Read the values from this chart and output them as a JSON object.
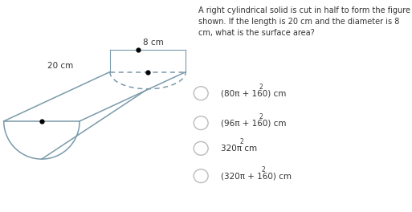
{
  "title_text": "A right cylindrical solid is cut in half to form the figure\nshown. If the length is 20 cm and the diameter is 8\ncm, what is the surface area?",
  "options_base": [
    "(80π + 160) cm",
    "(96π + 160) cm",
    "320π cm",
    "(320π + 160) cm"
  ],
  "label_length": "20 cm",
  "label_diameter": "8 cm",
  "bg_color": "#ffffff",
  "text_color": "#333333",
  "shape_color": "#7a9aaa",
  "radio_color": "#bbbbbb"
}
